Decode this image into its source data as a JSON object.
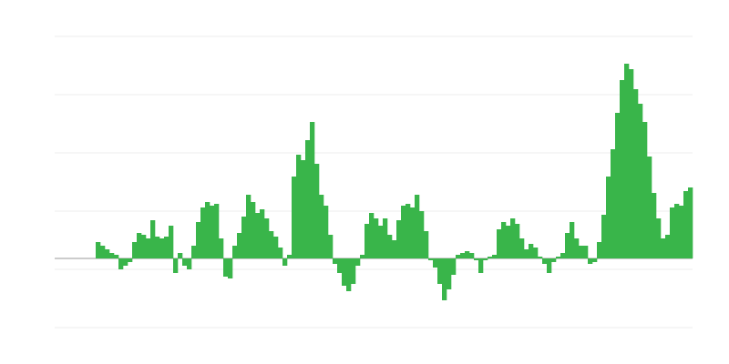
{
  "chart_data": {
    "type": "bar",
    "color": "#39b54a",
    "grid": true,
    "ylim": [
      -76,
      244
    ],
    "yticks": [
      -76,
      -12,
      52,
      116,
      180,
      244
    ],
    "values": [
      null,
      null,
      null,
      null,
      null,
      null,
      null,
      null,
      null,
      18,
      14,
      10,
      6,
      4,
      -12,
      -8,
      -4,
      18,
      28,
      26,
      22,
      42,
      24,
      22,
      24,
      36,
      -16,
      6,
      -8,
      -12,
      14,
      40,
      56,
      62,
      58,
      60,
      22,
      -20,
      -22,
      14,
      28,
      46,
      70,
      62,
      50,
      54,
      44,
      30,
      24,
      12,
      -8,
      4,
      90,
      114,
      108,
      130,
      150,
      104,
      70,
      58,
      26,
      -6,
      -16,
      -30,
      -36,
      -28,
      -8,
      4,
      38,
      50,
      44,
      36,
      44,
      26,
      20,
      42,
      58,
      60,
      56,
      70,
      52,
      30,
      -2,
      -10,
      -28,
      -46,
      -34,
      -18,
      4,
      6,
      8,
      6,
      -2,
      -16,
      -2,
      2,
      4,
      32,
      40,
      36,
      44,
      38,
      22,
      10,
      16,
      12,
      2,
      -6,
      -16,
      -4,
      2,
      6,
      28,
      40,
      22,
      14,
      14,
      -6,
      -4,
      18,
      48,
      90,
      120,
      160,
      196,
      214,
      208,
      186,
      170,
      150,
      112,
      72,
      44,
      22,
      26,
      56,
      60,
      58,
      74,
      78
    ]
  }
}
